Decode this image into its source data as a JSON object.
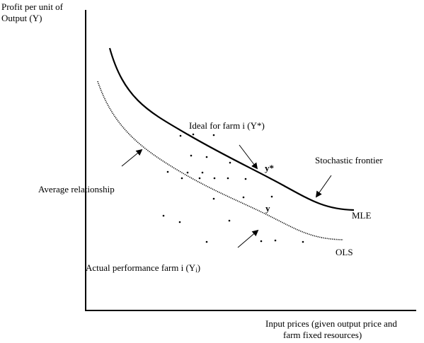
{
  "labels": {
    "y_axis_line1": "Profit per unit of",
    "y_axis_line2": "Output (Y)",
    "x_axis_line1": "Input prices (given output price and",
    "x_axis_line2": "farm fixed resources)",
    "ideal": "Ideal for farm i (Y*)",
    "frontier": "Stochastic frontier",
    "average": "Average relationship",
    "actual_main": "Actual performance farm i (Y",
    "actual_sub": "i",
    "actual_close": ")",
    "point_ystar": "y*",
    "point_y": "y",
    "mle": "MLE",
    "ols": "OLS"
  }
}
